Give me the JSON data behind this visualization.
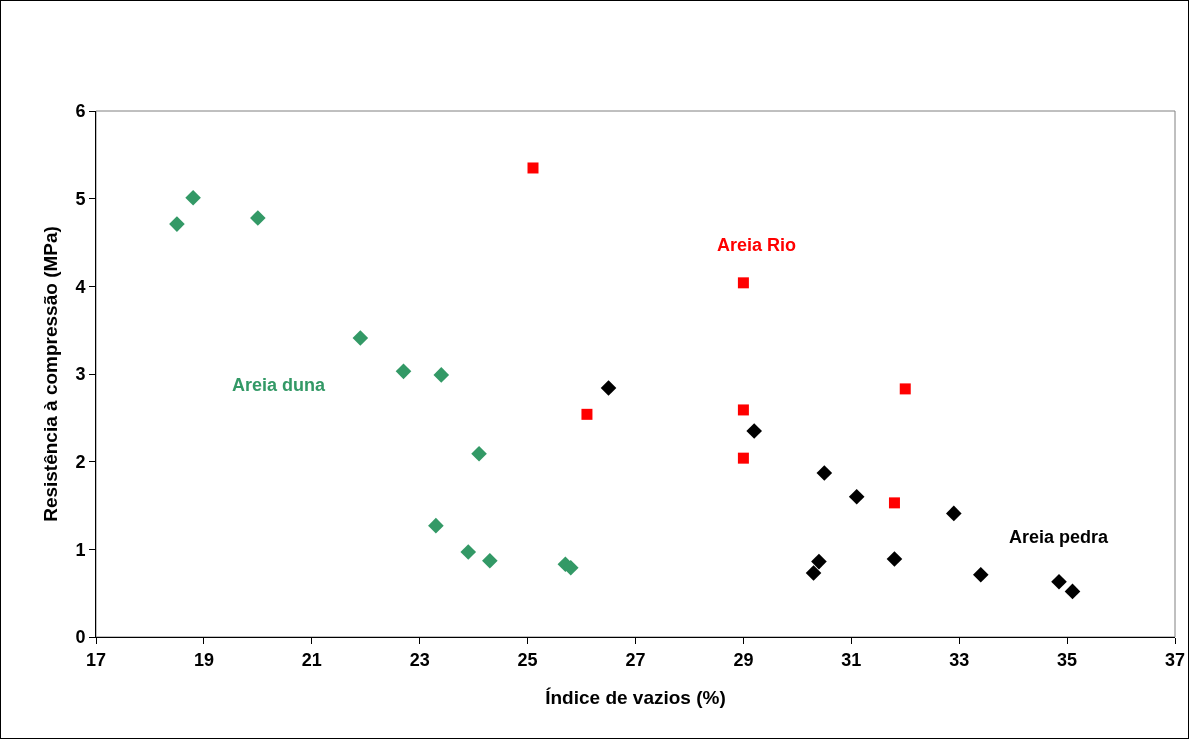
{
  "chart_data": {
    "type": "scatter",
    "xlabel": "Índice de vazios (%)",
    "ylabel": "Resistência à compressão (MPa)",
    "xlim": [
      17,
      37
    ],
    "xticks": [
      17,
      19,
      21,
      23,
      25,
      27,
      29,
      31,
      33,
      35,
      37
    ],
    "ylim": [
      0,
      6
    ],
    "yticks": [
      0,
      1,
      2,
      3,
      4,
      5,
      6
    ],
    "grid": false,
    "legend": false,
    "series": [
      {
        "name": "Areia duna",
        "color": "#339966",
        "marker": "diamond",
        "x": [
          18.5,
          18.8,
          20.0,
          21.9,
          22.7,
          23.4,
          24.1,
          23.3,
          23.9,
          24.3,
          25.7,
          25.8
        ],
        "values": [
          4.71,
          5.01,
          4.78,
          3.41,
          3.03,
          2.99,
          2.09,
          1.27,
          0.97,
          0.87,
          0.83,
          0.79
        ]
      },
      {
        "name": "Areia Rio",
        "color": "#ff0000",
        "marker": "square",
        "x": [
          25.1,
          26.1,
          29.0,
          29.0,
          29.0,
          32.0,
          31.8
        ],
        "values": [
          5.35,
          2.54,
          4.04,
          2.59,
          2.04,
          2.83,
          1.53
        ]
      },
      {
        "name": "Areia pedra",
        "color": "#000000",
        "marker": "diamond",
        "x": [
          26.5,
          29.2,
          30.5,
          31.1,
          30.3,
          30.4,
          31.8,
          32.9,
          33.4,
          34.85,
          35.1
        ],
        "values": [
          2.84,
          2.35,
          1.87,
          1.6,
          0.73,
          0.86,
          0.89,
          1.41,
          0.71,
          0.63,
          0.52
        ]
      }
    ]
  }
}
